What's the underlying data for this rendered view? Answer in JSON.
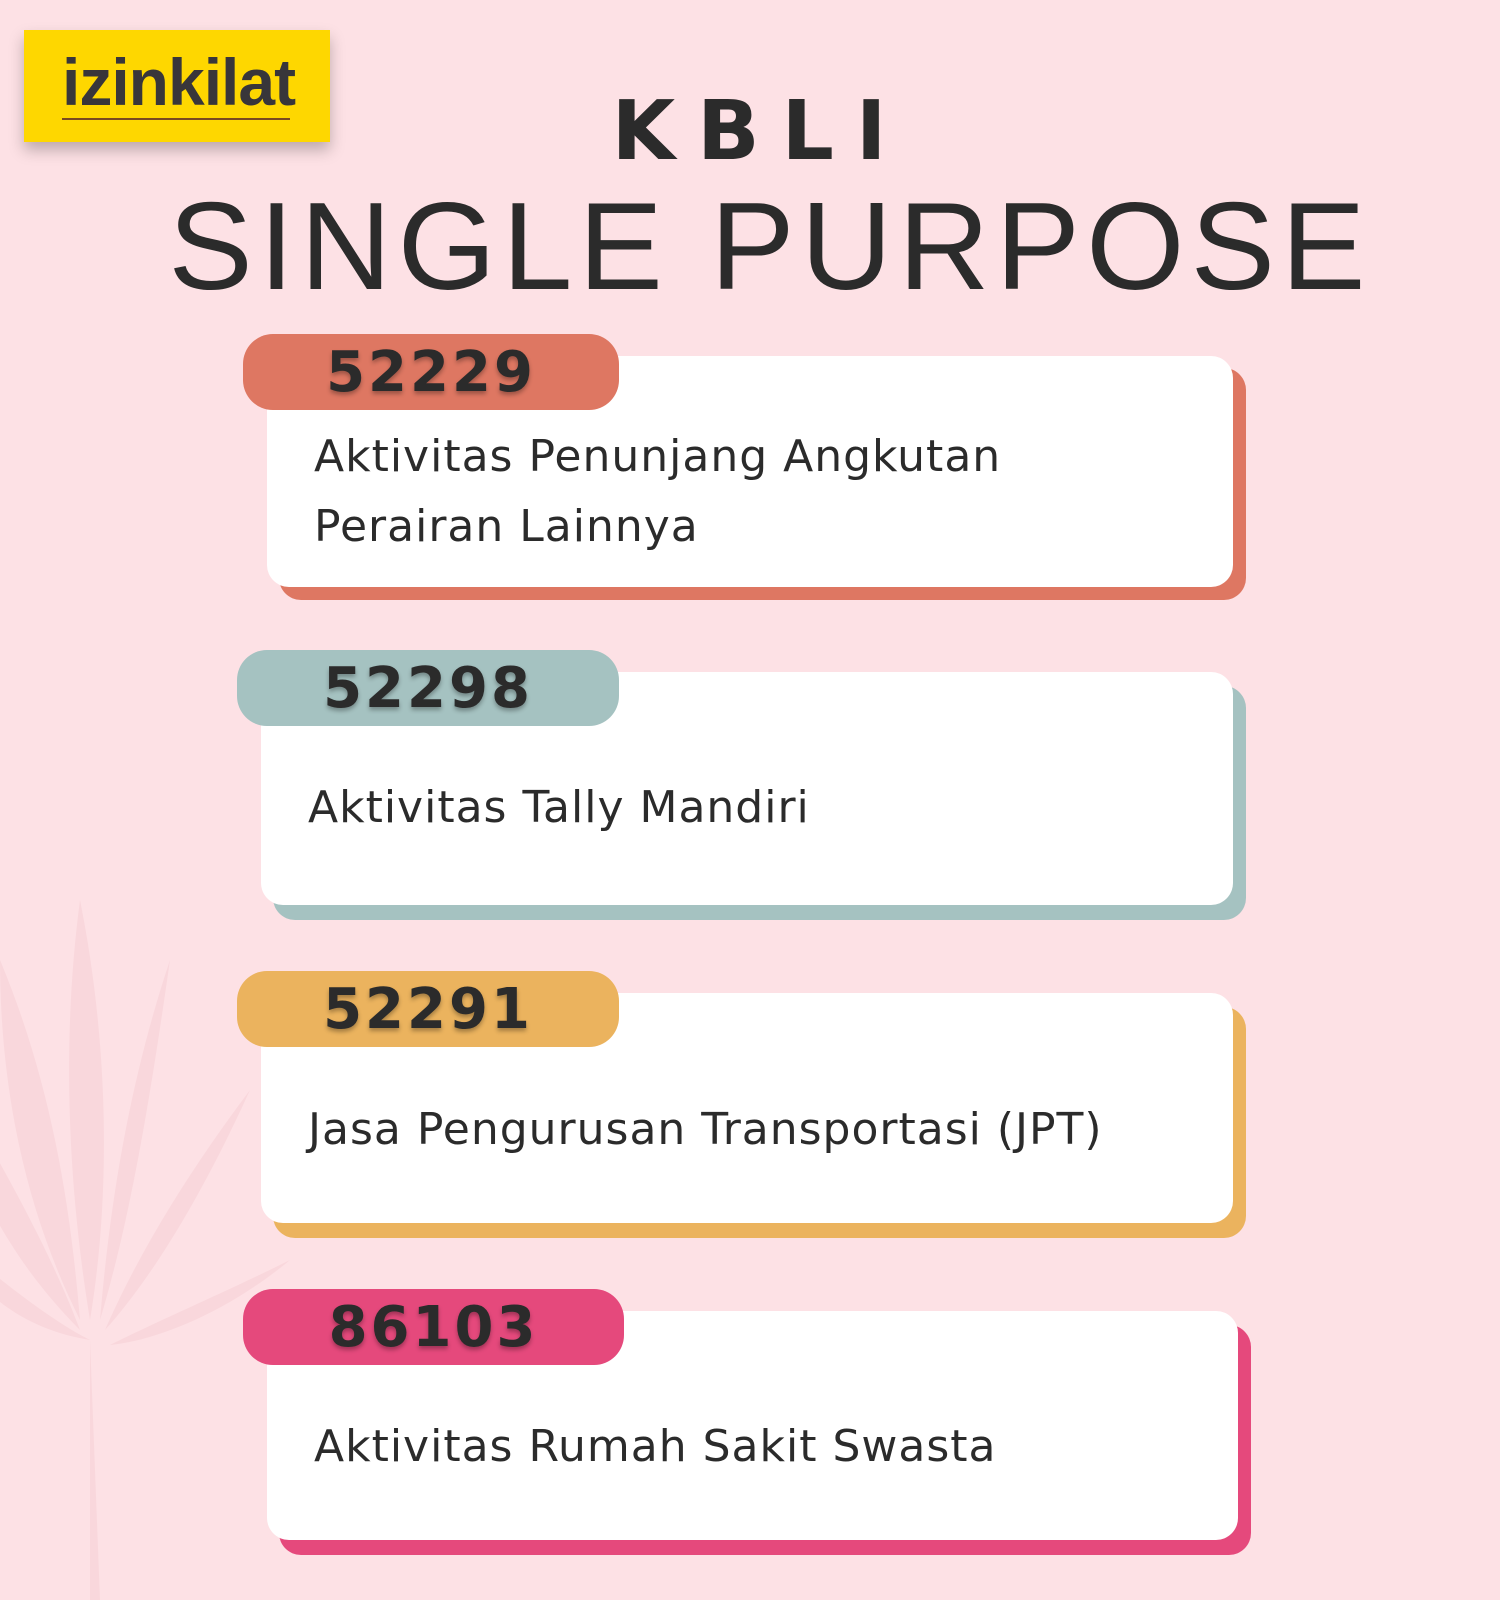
{
  "logo": {
    "text": "izinkilat",
    "color": "#fed700"
  },
  "title": {
    "line1": "KBLI",
    "line2": "SINGLE PURPOSE"
  },
  "items": [
    {
      "code": "52229",
      "description": "Aktivitas Penunjang Angkutan Perairan Lainnya",
      "color": "#de7762"
    },
    {
      "code": "52298",
      "description": "Aktivitas Tally Mandiri",
      "color": "#a5c2c1"
    },
    {
      "code": "52291",
      "description": "Jasa Pengurusan Transportasi (JPT)",
      "color": "#ebb35e"
    },
    {
      "code": "86103",
      "description": "Aktivitas Rumah Sakit Swasta",
      "color": "#e5497c"
    }
  ],
  "colors": {
    "background": "#fde1e5",
    "text": "#2b2b2b"
  }
}
